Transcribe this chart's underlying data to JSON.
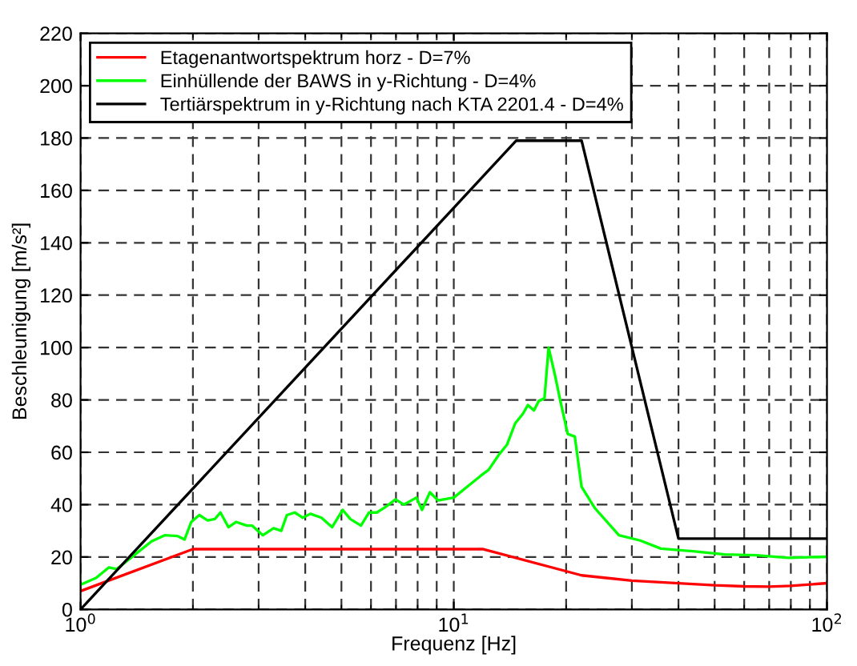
{
  "chart_data": {
    "type": "line",
    "xlabel": "Frequenz [Hz]",
    "ylabel": "Beschleunigung [m/s²]",
    "log": "x",
    "grid": true,
    "legend": "top left",
    "xlim": [
      1,
      100
    ],
    "ylim": [
      0,
      220
    ],
    "xticks": [
      {
        "value": 1,
        "label": "10$^{0}$"
      },
      {
        "value": 10,
        "label": "10$^{1}$"
      },
      {
        "value": 100,
        "label": "10$^{2}$"
      }
    ],
    "yticks": [
      0,
      20,
      40,
      60,
      80,
      100,
      120,
      140,
      160,
      180,
      200,
      220
    ],
    "series": [
      {
        "name": "Etagenantwortspektrum horz - D=7%",
        "color": "#ff0000",
        "x": [
          1,
          2,
          12,
          22,
          30,
          40,
          50,
          60,
          70,
          80,
          100
        ],
        "values": [
          7,
          23,
          23,
          13,
          11,
          10,
          9.2,
          8.8,
          8.7,
          9,
          10
        ]
      },
      {
        "name": "Einhüllende der BAWS in y-Richtung - D=4%",
        "color": "#00ff00",
        "x": [
          1.0,
          1.1,
          1.19,
          1.25,
          1.4,
          1.55,
          1.68,
          1.82,
          1.9,
          1.98,
          2.08,
          2.19,
          2.29,
          2.37,
          2.49,
          2.61,
          2.79,
          2.88,
          3.08,
          3.29,
          3.45,
          3.57,
          3.75,
          3.94,
          4.13,
          4.42,
          4.72,
          5.04,
          5.28,
          5.64,
          5.93,
          6.22,
          6.55,
          6.98,
          7.35,
          7.94,
          8.22,
          8.63,
          9.08,
          10,
          10.9,
          11.8,
          12.4,
          13.2,
          13.9,
          14.6,
          15.3,
          15.8,
          16.4,
          16.9,
          17.5,
          17.95,
          18.7,
          19.3,
          20.2,
          21.1,
          22.0,
          23.9,
          27.7,
          31.6,
          35.9,
          43.7,
          53.2,
          64.6,
          78.9,
          100
        ],
        "values": [
          9.4,
          12,
          16,
          15.4,
          21,
          26,
          28.3,
          28,
          26.7,
          33.4,
          36,
          34,
          34.5,
          37,
          31.4,
          33.4,
          32,
          32,
          28.3,
          31,
          30,
          36,
          37,
          35,
          36.5,
          35,
          31.4,
          38,
          34.5,
          32,
          37,
          37,
          39,
          42,
          40,
          42.7,
          38,
          44.7,
          41.6,
          42.7,
          47,
          51,
          53.3,
          59,
          63,
          71,
          74.6,
          78,
          76,
          79.6,
          80.6,
          100,
          89,
          79.6,
          67,
          66,
          46.8,
          38.6,
          28.3,
          26.3,
          23.2,
          22.2,
          21,
          20.7,
          19.7,
          20.1
        ]
      },
      {
        "name": "Tertiärspektrum in y-Richtung nach KTA 2201.4 - D=4%",
        "color": "#000000",
        "x": [
          1,
          14.7,
          22,
          40,
          100
        ],
        "values": [
          0,
          179,
          179,
          27,
          27
        ]
      }
    ]
  }
}
